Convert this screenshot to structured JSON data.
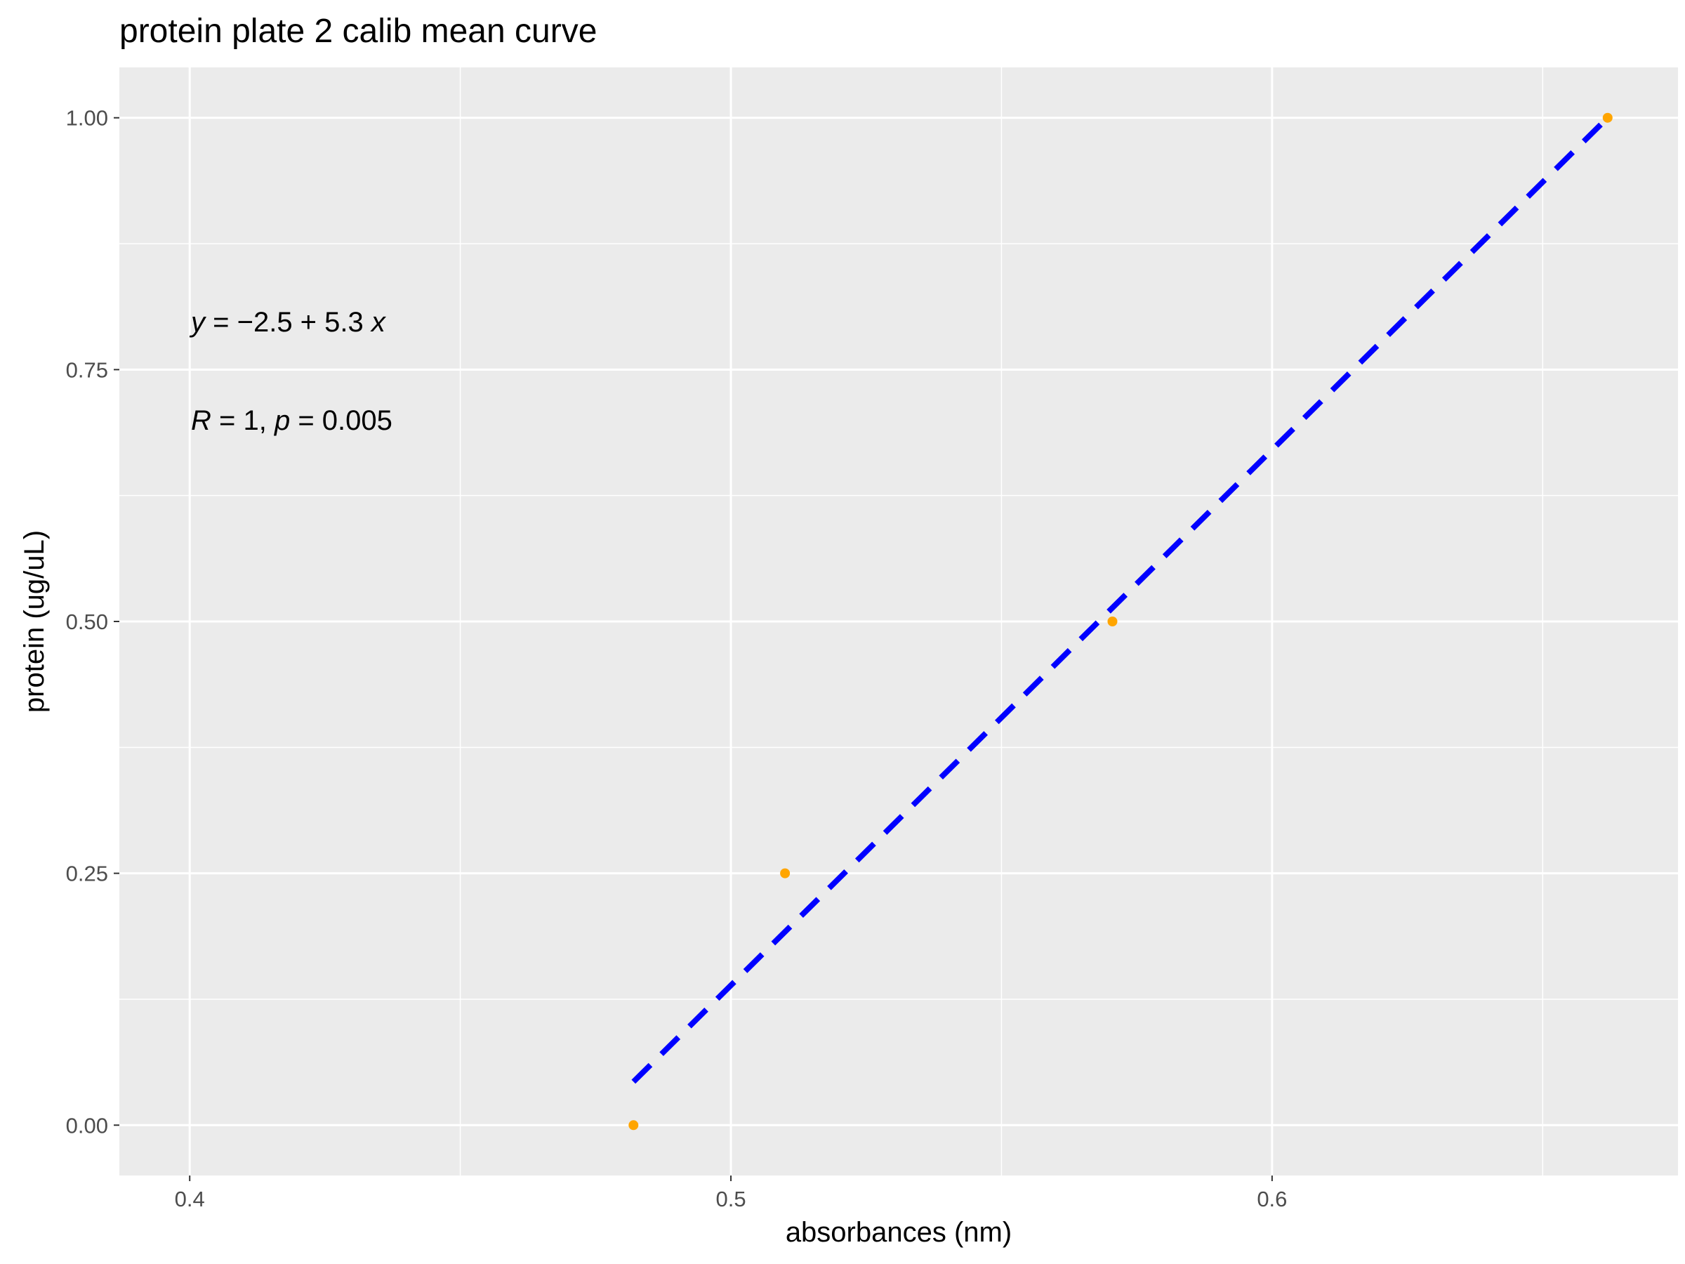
{
  "chart_data": {
    "type": "scatter",
    "title": "protein plate 2 calib mean curve",
    "xlabel": "absorbances (nm)",
    "ylabel": "protein (ug/uL)",
    "xlim": [
      0.387,
      0.675
    ],
    "ylim": [
      -0.05,
      1.05
    ],
    "x_ticks": [
      0.4,
      0.5,
      0.6
    ],
    "x_tick_labels": [
      "0.4",
      "0.5",
      "0.6"
    ],
    "x_minor_ticks": [
      0.45,
      0.55,
      0.65
    ],
    "y_ticks": [
      0.0,
      0.25,
      0.5,
      0.75,
      1.0
    ],
    "y_tick_labels": [
      "0.00",
      "0.25",
      "0.50",
      "0.75",
      "1.00"
    ],
    "y_minor_ticks": [
      0.125,
      0.375,
      0.625,
      0.875
    ],
    "grid": true,
    "points": {
      "color": "#FFA500",
      "x": [
        0.482,
        0.51,
        0.5705,
        0.662
      ],
      "y": [
        0.0,
        0.25,
        0.5,
        1.0
      ]
    },
    "fit_line": {
      "style": "dashed",
      "color": "#0000FF",
      "x": [
        0.482,
        0.662
      ],
      "y": [
        0.0431,
        1.0
      ]
    },
    "annotations": {
      "equation": {
        "y": "y",
        "eq": " = ",
        "minus": "−",
        "intercept": "2.5",
        "plus": " + ",
        "slope": "5.3",
        "x": "x"
      },
      "stats": {
        "r": "R",
        "r_val": " = 1, ",
        "p": "p",
        "p_val": " = 0.005"
      }
    }
  }
}
